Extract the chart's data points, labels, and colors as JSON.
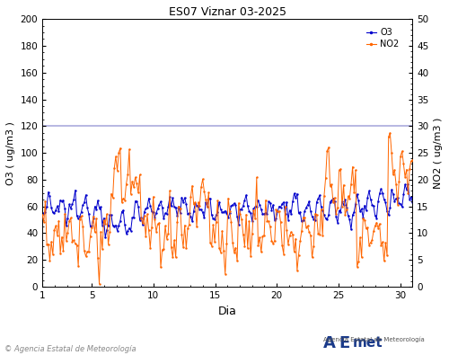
{
  "title": "ES07 Viznar 03-2025",
  "xlabel": "Dia",
  "ylabel_left": "O3 ( ug/m3 )",
  "ylabel_right": "NO2 ( ug/m3 )",
  "xlim": [
    1,
    31
  ],
  "ylim_left": [
    0,
    200
  ],
  "ylim_right": [
    0,
    50
  ],
  "yticks_left": [
    0,
    20,
    40,
    60,
    80,
    100,
    120,
    140,
    160,
    180,
    200
  ],
  "yticks_right": [
    0,
    5,
    10,
    15,
    20,
    25,
    30,
    35,
    40,
    45,
    50
  ],
  "xticks": [
    1,
    5,
    10,
    15,
    20,
    25,
    30
  ],
  "threshold_o3": 120,
  "threshold_color": "#aaaadd",
  "o3_color": "#0000cc",
  "no2_color": "#ff6600",
  "legend_labels": [
    "O3",
    "NO2"
  ],
  "footnote": "© Agencia Estatal de Meteorología",
  "background_color": "#ffffff",
  "n_days": 31,
  "o3_base": 58,
  "no2_base": 10
}
